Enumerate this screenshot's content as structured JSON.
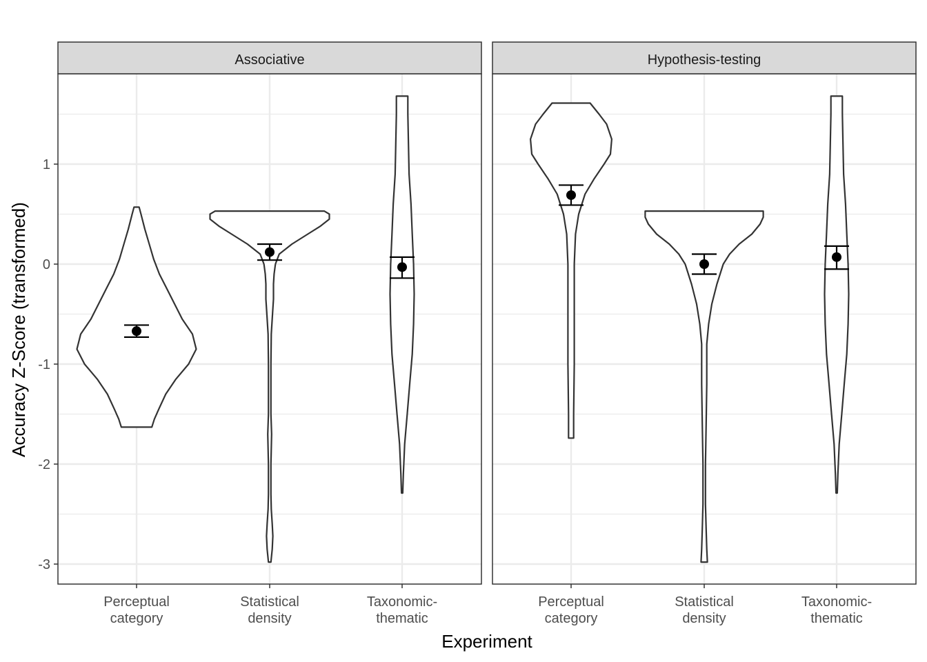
{
  "chart_data": {
    "type": "violin",
    "xlabel": "Experiment",
    "ylabel": "Accuracy Z-Score (transformed)",
    "ylim": [
      -3.2,
      1.9
    ],
    "yticks": [
      "1",
      "0",
      "-1",
      "-2",
      "-3"
    ],
    "ytick_values": [
      1,
      0,
      -1,
      -2,
      -3
    ],
    "categories": [
      {
        "line1": "Perceptual",
        "line2": "category"
      },
      {
        "line1": "Statistical",
        "line2": "density"
      },
      {
        "line1": "Taxonomic-",
        "line2": "thematic"
      }
    ],
    "grid": true,
    "legend": "none",
    "colors": {
      "outline": "#333333",
      "grid": "#ebebeb",
      "strip": "#d9d9d9",
      "point": "#000000"
    },
    "panels": [
      {
        "title": "Associative",
        "violins": [
          {
            "ymin": -1.63,
            "ymax": 0.57,
            "mean": -0.67,
            "se_low": -0.73,
            "se_high": -0.61,
            "profile": [
              [
                -1.63,
                0.24
              ],
              [
                -1.55,
                0.28
              ],
              [
                -1.45,
                0.35
              ],
              [
                -1.3,
                0.46
              ],
              [
                -1.15,
                0.62
              ],
              [
                -1.0,
                0.82
              ],
              [
                -0.85,
                0.94
              ],
              [
                -0.7,
                0.88
              ],
              [
                -0.55,
                0.72
              ],
              [
                -0.4,
                0.6
              ],
              [
                -0.25,
                0.48
              ],
              [
                -0.1,
                0.36
              ],
              [
                0.05,
                0.27
              ],
              [
                0.2,
                0.2
              ],
              [
                0.35,
                0.13
              ],
              [
                0.5,
                0.07
              ],
              [
                0.57,
                0.04
              ]
            ]
          },
          {
            "ymin": -2.98,
            "ymax": 0.53,
            "mean": 0.12,
            "se_low": 0.04,
            "se_high": 0.2,
            "profile": [
              [
                -2.98,
                0.02
              ],
              [
                -2.85,
                0.04
              ],
              [
                -2.72,
                0.05
              ],
              [
                -2.6,
                0.04
              ],
              [
                -2.45,
                0.025
              ],
              [
                -2.3,
                0.02
              ],
              [
                -2.0,
                0.02
              ],
              [
                -1.7,
                0.03
              ],
              [
                -1.5,
                0.02
              ],
              [
                -1.0,
                0.02
              ],
              [
                -0.7,
                0.025
              ],
              [
                -0.5,
                0.045
              ],
              [
                -0.35,
                0.06
              ],
              [
                -0.2,
                0.06
              ],
              [
                -0.1,
                0.07
              ],
              [
                0.0,
                0.09
              ],
              [
                0.1,
                0.15
              ],
              [
                0.2,
                0.35
              ],
              [
                0.3,
                0.6
              ],
              [
                0.38,
                0.8
              ],
              [
                0.45,
                0.94
              ],
              [
                0.5,
                0.94
              ],
              [
                0.53,
                0.86
              ]
            ]
          },
          {
            "ymin": -2.29,
            "ymax": 1.68,
            "mean": -0.03,
            "se_low": -0.14,
            "se_high": 0.07,
            "profile": [
              [
                -2.29,
                0.01
              ],
              [
                -2.1,
                0.02
              ],
              [
                -1.8,
                0.04
              ],
              [
                -1.5,
                0.08
              ],
              [
                -1.2,
                0.12
              ],
              [
                -0.9,
                0.16
              ],
              [
                -0.6,
                0.18
              ],
              [
                -0.3,
                0.19
              ],
              [
                0.0,
                0.18
              ],
              [
                0.3,
                0.16
              ],
              [
                0.6,
                0.14
              ],
              [
                0.9,
                0.11
              ],
              [
                1.2,
                0.1
              ],
              [
                1.5,
                0.09
              ],
              [
                1.68,
                0.09
              ]
            ]
          }
        ]
      },
      {
        "title": "Hypothesis-testing",
        "violins": [
          {
            "ymin": -1.74,
            "ymax": 1.61,
            "mean": 0.69,
            "se_low": 0.59,
            "se_high": 0.79,
            "profile": [
              [
                -1.74,
                0.04
              ],
              [
                -1.5,
                0.04
              ],
              [
                -1.0,
                0.05
              ],
              [
                -0.5,
                0.05
              ],
              [
                0.0,
                0.05
              ],
              [
                0.3,
                0.07
              ],
              [
                0.5,
                0.12
              ],
              [
                0.7,
                0.22
              ],
              [
                0.85,
                0.36
              ],
              [
                1.0,
                0.52
              ],
              [
                1.1,
                0.62
              ],
              [
                1.25,
                0.64
              ],
              [
                1.4,
                0.56
              ],
              [
                1.5,
                0.44
              ],
              [
                1.61,
                0.3
              ]
            ]
          },
          {
            "ymin": -2.98,
            "ymax": 0.53,
            "mean": 0.0,
            "se_low": -0.1,
            "se_high": 0.1,
            "profile": [
              [
                -2.98,
                0.05
              ],
              [
                -2.85,
                0.04
              ],
              [
                -2.65,
                0.03
              ],
              [
                -2.4,
                0.02
              ],
              [
                -2.0,
                0.02
              ],
              [
                -1.6,
                0.03
              ],
              [
                -1.2,
                0.04
              ],
              [
                -0.8,
                0.04
              ],
              [
                -0.6,
                0.07
              ],
              [
                -0.4,
                0.12
              ],
              [
                -0.2,
                0.2
              ],
              [
                0.0,
                0.3
              ],
              [
                0.1,
                0.4
              ],
              [
                0.2,
                0.55
              ],
              [
                0.3,
                0.75
              ],
              [
                0.4,
                0.88
              ],
              [
                0.47,
                0.93
              ],
              [
                0.53,
                0.93
              ]
            ]
          },
          {
            "ymin": -2.29,
            "ymax": 1.68,
            "mean": 0.07,
            "se_low": -0.05,
            "se_high": 0.18,
            "profile": [
              [
                -2.29,
                0.01
              ],
              [
                -2.1,
                0.02
              ],
              [
                -1.8,
                0.04
              ],
              [
                -1.5,
                0.08
              ],
              [
                -1.2,
                0.12
              ],
              [
                -0.9,
                0.16
              ],
              [
                -0.6,
                0.18
              ],
              [
                -0.3,
                0.19
              ],
              [
                0.0,
                0.18
              ],
              [
                0.3,
                0.16
              ],
              [
                0.6,
                0.14
              ],
              [
                0.9,
                0.11
              ],
              [
                1.2,
                0.1
              ],
              [
                1.5,
                0.09
              ],
              [
                1.68,
                0.09
              ]
            ]
          }
        ]
      }
    ]
  }
}
